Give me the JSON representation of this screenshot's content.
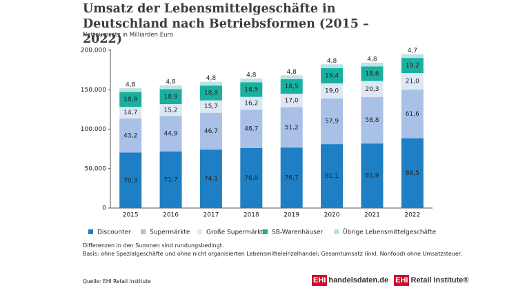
{
  "chart_data": {
    "type": "stacked_bar",
    "title": "Umsatz der Lebensmittelgeschäfte in Deutschland nach Betriebsformen (2015 – 2022)",
    "subtitle": "Nettoumsatz in Milliarden Euro",
    "categories": [
      "2015",
      "2016",
      "2017",
      "2018",
      "2019",
      "2020",
      "2021",
      "2022"
    ],
    "series": [
      {
        "name": "Discounter",
        "color": "#1f7fc4",
        "values": [
          70300,
          71700,
          74100,
          76000,
          76700,
          81100,
          81900,
          88500
        ],
        "value_labels": [
          "70,3",
          "71,7",
          "74,1",
          "76,0",
          "76,7",
          "81,1",
          "81,9",
          "88,5"
        ]
      },
      {
        "name": "Supermärkte",
        "color": "#a9c1e7",
        "values": [
          43200,
          44900,
          46700,
          48700,
          51200,
          57900,
          58800,
          61600
        ],
        "value_labels": [
          "43,2",
          "44,9",
          "46,7",
          "48,7",
          "51,2",
          "57,9",
          "58,8",
          "61,6"
        ]
      },
      {
        "name": "Große Supermärkte",
        "color": "#dee7f4",
        "values": [
          14700,
          15200,
          15700,
          16200,
          17000,
          19000,
          20300,
          21000
        ],
        "value_labels": [
          "14,7",
          "15,2",
          "15,7",
          "16,2",
          "17,0",
          "19,0",
          "20,3",
          "21,0"
        ]
      },
      {
        "name": "SB-Warenhäuser",
        "color": "#19b0a0",
        "values": [
          18900,
          18900,
          18800,
          18500,
          18500,
          19400,
          18600,
          19200
        ],
        "value_labels": [
          "18,9",
          "18,9",
          "18,8",
          "18,5",
          "18,5",
          "19,4",
          "18,6",
          "19,2"
        ]
      },
      {
        "name": "Übrige Lebensmittelgeschäfte",
        "color": "#bbe3e5",
        "values": [
          4800,
          4800,
          4800,
          4800,
          4800,
          4800,
          4800,
          4700
        ],
        "value_labels": [
          "4,8",
          "4,8",
          "4,8",
          "4,8",
          "4,8",
          "4,8",
          "4,8",
          "4,7"
        ]
      }
    ],
    "ylim": [
      0,
      200000
    ],
    "yticks": [
      0,
      {
        "value": 50000,
        "label": "50.000"
      },
      {
        "value": 100000,
        "label": "100.000"
      },
      {
        "value": 150000,
        "label": "150.000"
      },
      {
        "value": 200000,
        "label": "200.000"
      }
    ],
    "grid": false,
    "notes": [
      "Differenzen in den Summen sind rundungsbedingt.",
      "Basis: ohne Spezialgeschäfte und ohne nicht organisierten Lebensmitteleinzelhandel; Gesamtumsatz (inkl. Nonfood) ohne Umsatzsteuer."
    ],
    "source": "Quelle: EHI Retail Institute"
  },
  "branding": [
    {
      "mark": "EHI",
      "text": "handelsdaten.de"
    },
    {
      "mark": "EHI",
      "text": "Retail Institute®"
    }
  ]
}
